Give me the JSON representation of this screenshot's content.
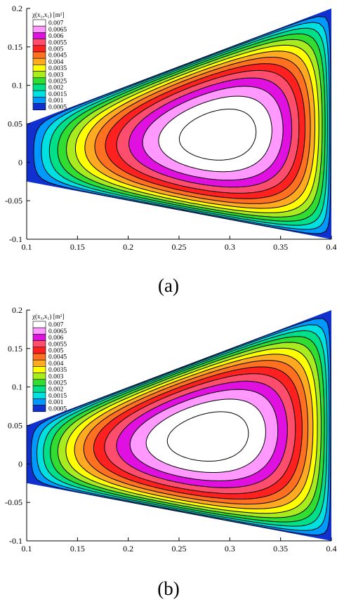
{
  "chart_data": [
    {
      "type": "contour",
      "panel_label": "(a)",
      "legend_title": "χ(x₁,x₁) [m²]",
      "legend_levels": [
        "0.007",
        "0.0065",
        "0.006",
        "0.0055",
        "0.005",
        "0.0045",
        "0.004",
        "0.0035",
        "0.003",
        "0.0025",
        "0.002",
        "0.0015",
        "0.001",
        "0.0005"
      ],
      "legend_colors": [
        "#ffffff",
        "#ff99ff",
        "#e010e0",
        "#ff4d6e",
        "#ff2020",
        "#ff7020",
        "#ffaa20",
        "#ffff00",
        "#a8ec20",
        "#30dd30",
        "#00e088",
        "#00e0e0",
        "#0099ff",
        "#1030d0"
      ],
      "xlim": [
        0.1,
        0.4
      ],
      "ylim": [
        -0.1,
        0.2
      ],
      "x_ticks": [
        "0.1",
        "0.15",
        "0.2",
        "0.25",
        "0.3",
        "0.35",
        "0.4"
      ],
      "y_ticks": [
        "-0.1",
        "-0.05",
        "0",
        "0.05",
        "0.1",
        "0.15",
        "0.2"
      ],
      "domain_vertices": [
        [
          0.1,
          0.05
        ],
        [
          0.4,
          0.2
        ],
        [
          0.4,
          -0.1
        ],
        [
          0.1,
          -0.025
        ]
      ],
      "peak": [
        0.29,
        0.035
      ],
      "num_levels": 14,
      "min_level": 0.0005,
      "max_level": 0.007
    },
    {
      "type": "contour",
      "panel_label": "(b)",
      "legend_title": "χ(x₁,x₁) [m²]",
      "legend_levels": [
        "0.007",
        "0.0065",
        "0.006",
        "0.0055",
        "0.005",
        "0.0045",
        "0.004",
        "0.0035",
        "0.003",
        "0.0025",
        "0.002",
        "0.0015",
        "0.001",
        "0.0005"
      ],
      "legend_colors": [
        "#ffffff",
        "#ff99ff",
        "#e010e0",
        "#ff4d6e",
        "#ff2020",
        "#ff7020",
        "#ffaa20",
        "#ffff00",
        "#a8ec20",
        "#30dd30",
        "#00e088",
        "#00e0e0",
        "#0099ff",
        "#1030d0"
      ],
      "xlim": [
        0.1,
        0.4
      ],
      "ylim": [
        -0.1,
        0.2
      ],
      "x_ticks": [
        "0.1",
        "0.15",
        "0.2",
        "0.25",
        "0.3",
        "0.35",
        "0.4"
      ],
      "y_ticks": [
        "-0.1",
        "-0.05",
        "0",
        "0.05",
        "0.1",
        "0.15",
        "0.2"
      ],
      "domain_vertices": [
        [
          0.1,
          0.05
        ],
        [
          0.4,
          0.2
        ],
        [
          0.4,
          -0.1
        ],
        [
          0.1,
          -0.025
        ]
      ],
      "peak": [
        0.28,
        0.035
      ],
      "num_levels": 14,
      "min_level": 0.0005,
      "max_level": 0.007
    }
  ]
}
